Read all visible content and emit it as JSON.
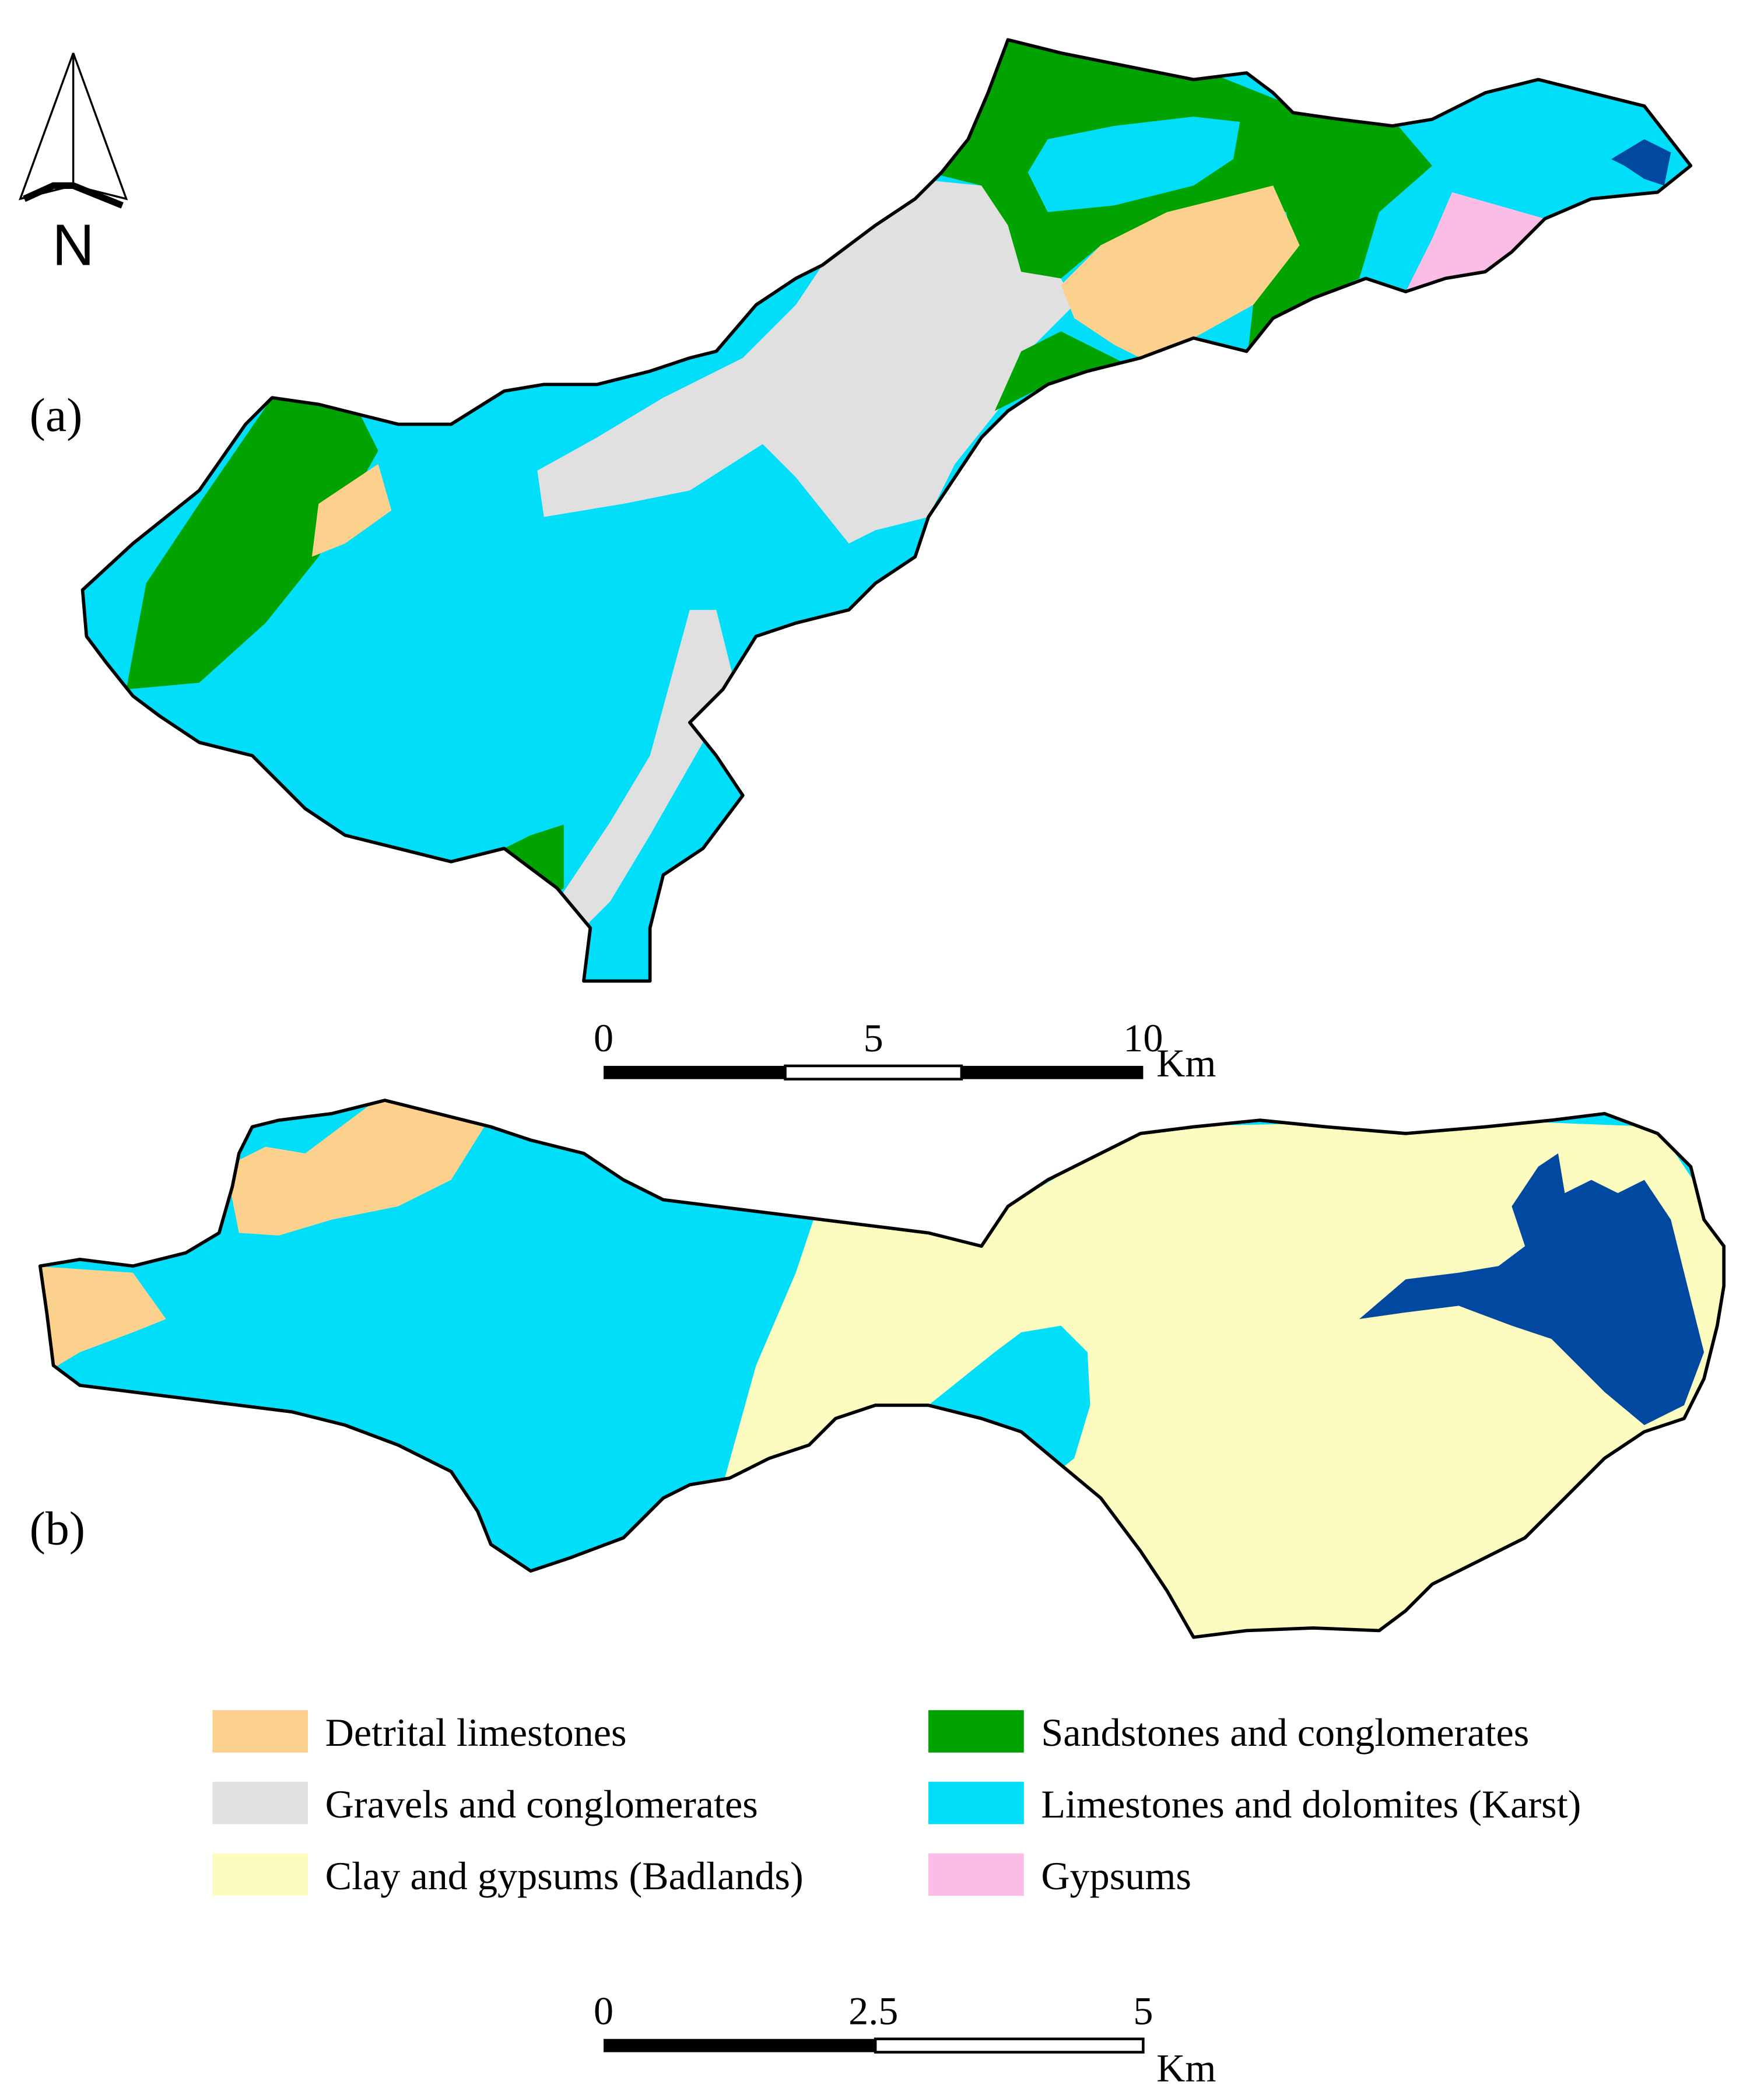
{
  "north_arrow": {
    "label": "N"
  },
  "panels": [
    {
      "label": "(a)",
      "scale_bar": {
        "ticks": [
          0,
          5,
          10
        ],
        "unit": "Km"
      }
    },
    {
      "label": "(b)",
      "scale_bar": {
        "ticks": [
          0,
          2.5,
          5
        ],
        "unit": "Km"
      }
    }
  ],
  "legend": [
    {
      "label": "Detrital limestones",
      "color": "#fbd18d"
    },
    {
      "label": "Sandstones and conglomerates",
      "color": "#00a300"
    },
    {
      "label": "Gravels and conglomerates",
      "color": "#e0e0e0"
    },
    {
      "label": "Limestones and dolomites (Karst)",
      "color": "#00def9"
    },
    {
      "label": "Clay and gypsums (Badlands)",
      "color": "#fdfcc0"
    },
    {
      "label": "Gypsums",
      "color": "#fbbde6"
    }
  ]
}
